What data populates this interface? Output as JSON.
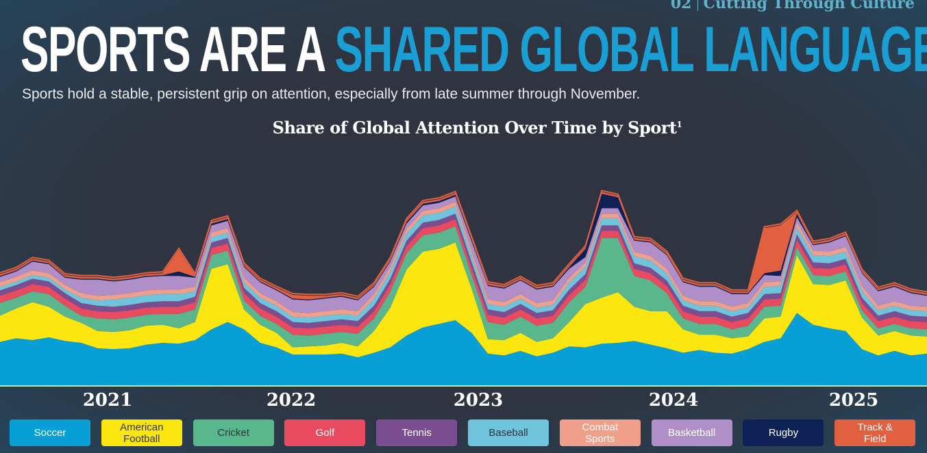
{
  "header": {
    "section_number": "02",
    "section_title": "Cutting Through Culture",
    "headline_white": "SPORTS ARE A ",
    "headline_blue": "SHARED GLOBAL LANGUAGE",
    "subtitle": "Sports hold a stable, persistent grip on attention, especially from late summer through November."
  },
  "colors": {
    "background": "#2f3440",
    "headline_white": "#ffffff",
    "headline_blue": "#1a9fd4",
    "section_tag": "#5fb4c9",
    "baseline": "#c9e4a3"
  },
  "chart_data": {
    "type": "area",
    "stacked": true,
    "title": "Share of Global Attention Over Time by Sport",
    "title_footnote": "1",
    "x_tick_labels": [
      "2021",
      "2022",
      "2023",
      "2024",
      "2025"
    ],
    "x": [
      "2021-01",
      "2021-02",
      "2021-03",
      "2021-04",
      "2021-05",
      "2021-06",
      "2021-07",
      "2021-08",
      "2021-09",
      "2021-10",
      "2021-11",
      "2021-12",
      "2022-01",
      "2022-02",
      "2022-03",
      "2022-04",
      "2022-05",
      "2022-06",
      "2022-07",
      "2022-08",
      "2022-09",
      "2022-10",
      "2022-11",
      "2022-12",
      "2023-01",
      "2023-02",
      "2023-03",
      "2023-04",
      "2023-05",
      "2023-06",
      "2023-07",
      "2023-08",
      "2023-09",
      "2023-10",
      "2023-11",
      "2023-12",
      "2024-01",
      "2024-02",
      "2024-03",
      "2024-04",
      "2024-05",
      "2024-06",
      "2024-07",
      "2024-08",
      "2024-09",
      "2024-10",
      "2024-11",
      "2024-12",
      "2025-01",
      "2025-02",
      "2025-03",
      "2025-04",
      "2025-05",
      "2025-06",
      "2025-07",
      "2025-08",
      "2025-09",
      "2025-10"
    ],
    "series": [
      {
        "name": "Soccer",
        "color": "#089ed6",
        "values": [
          48,
          52,
          50,
          53,
          49,
          47,
          41,
          40,
          41,
          45,
          47,
          46,
          50,
          62,
          70,
          62,
          47,
          42,
          34,
          34,
          34,
          35,
          31,
          36,
          42,
          55,
          64,
          68,
          72,
          58,
          35,
          33,
          38,
          32,
          36,
          43,
          42,
          46,
          47,
          49,
          45,
          41,
          36,
          39,
          36,
          35,
          40,
          48,
          52,
          80,
          67,
          63,
          60,
          40,
          33,
          38,
          33,
          35
        ]
      },
      {
        "name": "American Football",
        "color": "#fbe610",
        "values": [
          29,
          33,
          42,
          34,
          27,
          22,
          19,
          19,
          20,
          21,
          20,
          17,
          20,
          67,
          64,
          22,
          20,
          16,
          8,
          9,
          10,
          12,
          12,
          24,
          44,
          73,
          84,
          83,
          86,
          49,
          16,
          17,
          20,
          16,
          16,
          27,
          48,
          51,
          56,
          38,
          37,
          41,
          26,
          17,
          20,
          17,
          14,
          26,
          24,
          64,
          45,
          48,
          56,
          35,
          22,
          22,
          22,
          19
        ]
      },
      {
        "name": "Cricket",
        "color": "#5ab68c",
        "values": [
          14,
          12,
          12,
          14,
          12,
          8,
          14,
          14,
          14,
          12,
          12,
          16,
          14,
          15,
          15,
          10,
          10,
          10,
          14,
          12,
          13,
          12,
          14,
          14,
          18,
          18,
          18,
          18,
          18,
          15,
          19,
          17,
          18,
          18,
          17,
          22,
          19,
          66,
          60,
          34,
          34,
          20,
          12,
          12,
          12,
          10,
          12,
          13,
          12,
          9,
          10,
          10,
          10,
          8,
          8,
          8,
          8,
          8
        ]
      },
      {
        "name": "Golf",
        "color": "#e84a5f",
        "values": [
          8,
          8,
          8,
          8,
          8,
          8,
          8,
          8,
          8,
          8,
          8,
          8,
          8,
          8,
          8,
          8,
          8,
          8,
          8,
          8,
          8,
          8,
          8,
          8,
          8,
          8,
          8,
          8,
          8,
          8,
          8,
          8,
          8,
          8,
          8,
          8,
          8,
          8,
          8,
          8,
          8,
          8,
          8,
          8,
          8,
          8,
          8,
          8,
          8,
          8,
          8,
          8,
          8,
          8,
          8,
          8,
          8,
          8
        ]
      },
      {
        "name": "Tennis",
        "color": "#7a4e91",
        "values": [
          6,
          6,
          6,
          6,
          6,
          6,
          6,
          6,
          6,
          6,
          6,
          6,
          6,
          6,
          6,
          6,
          6,
          6,
          6,
          6,
          6,
          6,
          6,
          6,
          6,
          6,
          6,
          6,
          6,
          6,
          6,
          6,
          6,
          6,
          6,
          6,
          6,
          6,
          6,
          6,
          6,
          6,
          6,
          6,
          6,
          6,
          6,
          6,
          6,
          6,
          6,
          6,
          6,
          6,
          6,
          6,
          6,
          6
        ]
      },
      {
        "name": "Baseball",
        "color": "#6fc3db",
        "values": [
          4,
          4,
          4,
          4,
          4,
          6,
          6,
          8,
          8,
          8,
          8,
          8,
          6,
          6,
          6,
          6,
          6,
          6,
          6,
          6,
          6,
          6,
          6,
          8,
          8,
          8,
          8,
          8,
          8,
          8,
          6,
          6,
          6,
          6,
          6,
          8,
          8,
          8,
          8,
          8,
          8,
          8,
          6,
          6,
          6,
          6,
          6,
          8,
          8,
          8,
          8,
          8,
          8,
          8,
          6,
          6,
          6,
          6
        ]
      },
      {
        "name": "Combat Sports",
        "color": "#f0a08a",
        "values": [
          5,
          5,
          5,
          5,
          5,
          5,
          5,
          5,
          5,
          5,
          5,
          5,
          5,
          5,
          5,
          5,
          5,
          5,
          5,
          5,
          5,
          5,
          5,
          5,
          5,
          5,
          5,
          5,
          5,
          5,
          5,
          5,
          5,
          5,
          5,
          5,
          5,
          5,
          5,
          5,
          5,
          5,
          5,
          5,
          5,
          5,
          5,
          5,
          5,
          5,
          5,
          5,
          5,
          5,
          5,
          5,
          5,
          5
        ]
      },
      {
        "name": "Basketball",
        "color": "#b08ec8",
        "values": [
          6,
          6,
          10,
          10,
          8,
          15,
          18,
          15,
          15,
          15,
          15,
          15,
          10,
          8,
          8,
          12,
          12,
          12,
          14,
          14,
          14,
          14,
          12,
          8,
          6,
          6,
          6,
          6,
          6,
          10,
          15,
          15,
          15,
          15,
          15,
          10,
          6,
          6,
          6,
          12,
          15,
          15,
          15,
          16,
          16,
          14,
          10,
          8,
          6,
          6,
          6,
          10,
          12,
          14,
          16,
          16,
          14,
          12
        ]
      },
      {
        "name": "Rugby",
        "color": "#0e2157",
        "values": [
          1,
          1,
          1,
          1,
          1,
          1,
          1,
          1,
          1,
          1,
          1,
          5,
          1,
          2,
          2,
          1,
          1,
          1,
          1,
          1,
          1,
          1,
          1,
          1,
          1,
          2,
          2,
          2,
          2,
          2,
          1,
          1,
          1,
          1,
          1,
          2,
          9,
          16,
          12,
          1,
          1,
          1,
          1,
          1,
          1,
          1,
          1,
          2,
          6,
          4,
          1,
          1,
          1,
          1,
          1,
          1,
          1,
          1
        ]
      },
      {
        "name": "Track & Field",
        "color": "#e06040",
        "values": [
          2,
          2,
          2,
          2,
          2,
          2,
          2,
          2,
          2,
          2,
          2,
          24,
          2,
          2,
          2,
          2,
          2,
          2,
          4,
          4,
          2,
          2,
          2,
          2,
          2,
          2,
          2,
          2,
          2,
          2,
          2,
          2,
          2,
          2,
          2,
          2,
          2,
          2,
          2,
          2,
          2,
          2,
          2,
          2,
          2,
          2,
          2,
          50,
          50,
          2,
          2,
          2,
          2,
          2,
          2,
          2,
          2,
          2
        ]
      }
    ]
  },
  "legend": [
    {
      "label": "Soccer",
      "color": "#089ed6",
      "text_color": "#ffffff"
    },
    {
      "label": "American\nFootball",
      "color": "#fbe610",
      "text_color": "#2f3440"
    },
    {
      "label": "Cricket",
      "color": "#5ab68c",
      "text_color": "#2f3440"
    },
    {
      "label": "Golf",
      "color": "#e84a5f",
      "text_color": "#ffffff"
    },
    {
      "label": "Tennis",
      "color": "#7a4e91",
      "text_color": "#ffffff"
    },
    {
      "label": "Baseball",
      "color": "#6fc3db",
      "text_color": "#2f3440"
    },
    {
      "label": "Combat\nSports",
      "color": "#f0a08a",
      "text_color": "#ffffff"
    },
    {
      "label": "Basketball",
      "color": "#b08ec8",
      "text_color": "#ffffff"
    },
    {
      "label": "Rugby",
      "color": "#0e2157",
      "text_color": "#ffffff"
    },
    {
      "label": "Track &\nField",
      "color": "#e06040",
      "text_color": "#ffffff"
    }
  ]
}
